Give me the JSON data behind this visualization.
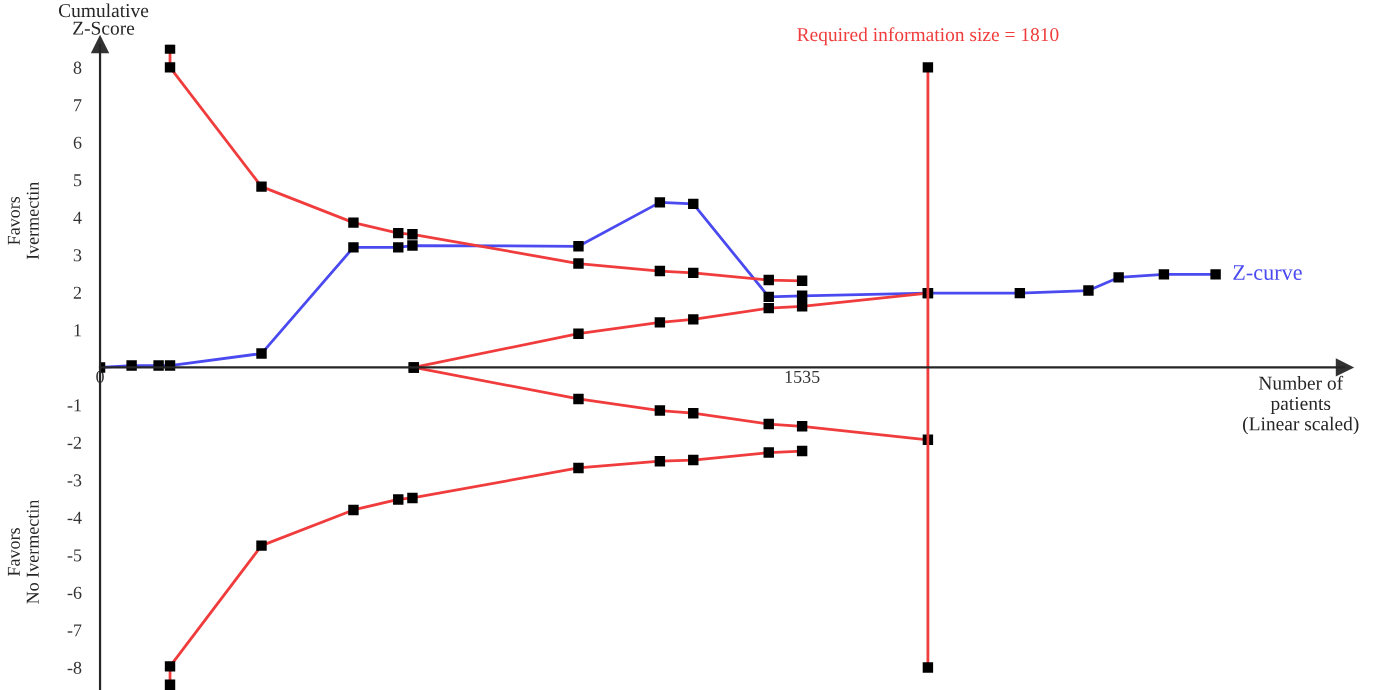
{
  "chart_data": {
    "type": "line",
    "ylabel": "Cumulative\nZ-Score",
    "xlabel": "Number of\npatients\n(Linear scaled)",
    "xlim": [
      0,
      2720
    ],
    "xticks": [
      0,
      1535
    ],
    "ylim": [
      -8.6,
      8.6
    ],
    "yticks": [
      -8,
      -7,
      -6,
      -5,
      -4,
      -3,
      -2,
      -1,
      1,
      2,
      3,
      4,
      5,
      6,
      7,
      8
    ],
    "marker": "square",
    "line_style": "solid",
    "grid": false,
    "legend": false,
    "series": [
      {
        "name": "Z-curve",
        "color": "#4a4af0",
        "x": [
          0,
          69,
          128,
          153,
          353,
          554,
          652,
          683,
          1046,
          1224,
          1297,
          1462,
          1535,
          1810,
          2011,
          2161,
          2227,
          2326,
          2439
        ],
        "values": [
          0,
          0.05,
          0.05,
          0.05,
          0.37,
          3.2,
          3.2,
          3.25,
          3.23,
          4.4,
          4.36,
          1.88,
          1.91,
          1.98,
          1.98,
          2.05,
          2.4,
          2.48,
          2.48
        ]
      },
      {
        "color": "#f03c3c",
        "x": [
          153,
          153,
          353,
          554,
          652,
          683,
          1046,
          1224,
          1297,
          1462,
          1535
        ],
        "values": [
          8.5,
          8,
          4.82,
          3.86,
          3.58,
          3.55,
          2.77,
          2.57,
          2.52,
          2.33,
          2.31
        ]
      },
      {
        "color": "#f03c3c",
        "x": [
          686,
          1046,
          1224,
          1297,
          1462,
          1535,
          1810
        ],
        "values": [
          0,
          0.9,
          1.2,
          1.28,
          1.58,
          1.63,
          1.98
        ]
      },
      {
        "color": "#f03c3c",
        "x": [
          686,
          1046,
          1224,
          1297,
          1462,
          1535,
          1810
        ],
        "values": [
          0,
          -0.84,
          -1.15,
          -1.22,
          -1.51,
          -1.57,
          -1.93
        ]
      },
      {
        "color": "#f03c3c",
        "x": [
          153,
          153,
          353,
          554,
          652,
          683,
          1046,
          1224,
          1297,
          1462,
          1535
        ],
        "values": [
          -8.46,
          -7.97,
          -4.75,
          -3.8,
          -3.52,
          -3.48,
          -2.68,
          -2.5,
          -2.47,
          -2.27,
          -2.23
        ]
      },
      {
        "color": "#f03c3c",
        "x": [
          1810,
          1810
        ],
        "values": [
          8,
          -8
        ]
      }
    ],
    "annotations": [
      {
        "text": "Required information size = 1810",
        "x": 1810,
        "y": 8
      },
      "Favors\nIvermectin",
      "Favors\nNo Ivermectin"
    ]
  }
}
